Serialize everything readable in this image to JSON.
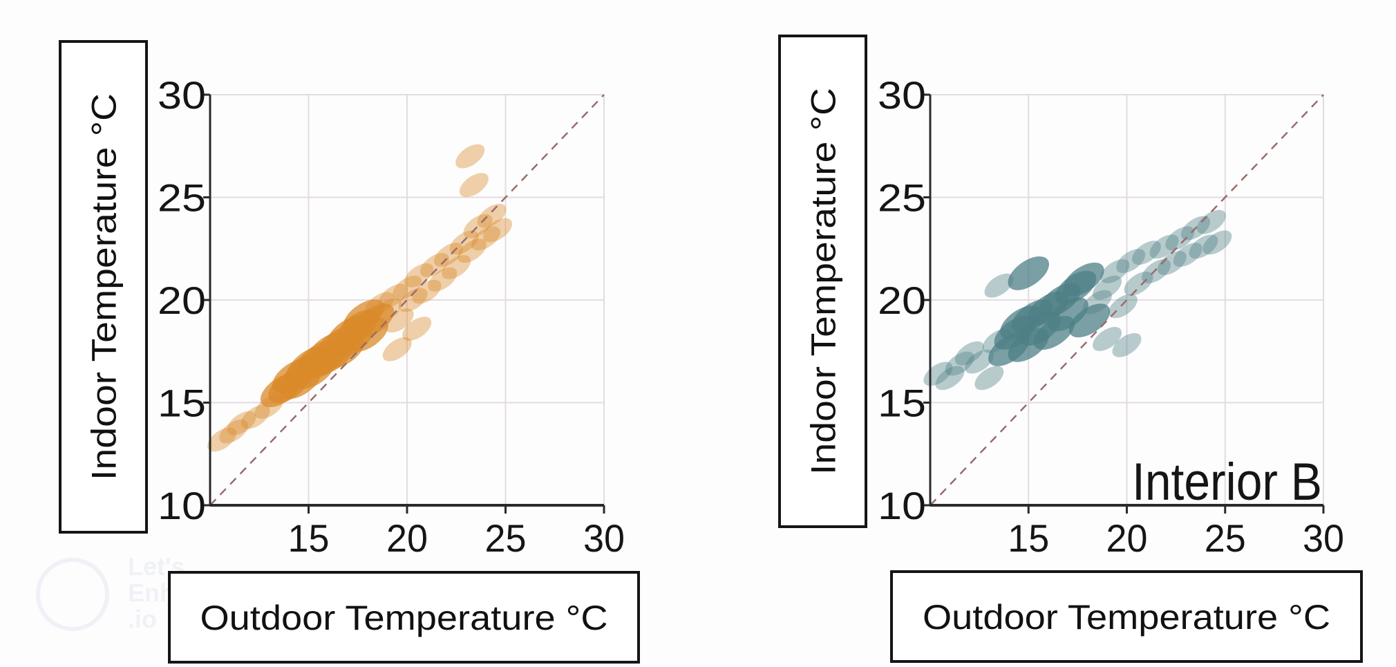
{
  "watermark": {
    "lines": [
      "Let's",
      "Enhance",
      ".io"
    ]
  },
  "chart_data": [
    {
      "type": "scatter",
      "title": "",
      "annotation": "",
      "xlabel": "Outdoor Temperature °C",
      "ylabel": "Indoor Temperature °C",
      "xlim": [
        10,
        30
      ],
      "ylim": [
        10,
        30
      ],
      "xticks": [
        "15",
        "20",
        "25",
        "30"
      ],
      "yticks": [
        "10",
        "15",
        "20",
        "25",
        "30"
      ],
      "grid": true,
      "reference_line": "y = x (dashed)",
      "color": "#d98a2a",
      "points": [
        [
          10.6,
          13.2
        ],
        [
          11.2,
          13.6
        ],
        [
          11.6,
          14.0
        ],
        [
          12.3,
          14.3
        ],
        [
          13.0,
          14.8
        ],
        [
          13.6,
          15.6
        ],
        [
          14.0,
          15.8
        ],
        [
          14.2,
          16.3
        ],
        [
          14.6,
          16.0
        ],
        [
          14.8,
          16.6
        ],
        [
          15.0,
          16.9
        ],
        [
          15.3,
          16.5
        ],
        [
          15.5,
          17.2
        ],
        [
          15.8,
          17.0
        ],
        [
          16.0,
          17.6
        ],
        [
          16.2,
          17.2
        ],
        [
          16.5,
          17.9
        ],
        [
          16.8,
          17.5
        ],
        [
          17.0,
          18.4
        ],
        [
          17.2,
          18.0
        ],
        [
          17.5,
          18.7
        ],
        [
          17.8,
          19.2
        ],
        [
          18.0,
          18.3
        ],
        [
          18.3,
          19.0
        ],
        [
          18.6,
          19.8
        ],
        [
          19.0,
          19.5
        ],
        [
          19.3,
          20.2
        ],
        [
          19.6,
          19.0
        ],
        [
          20.0,
          20.6
        ],
        [
          20.3,
          20.0
        ],
        [
          20.6,
          21.2
        ],
        [
          21.0,
          20.4
        ],
        [
          21.4,
          21.7
        ],
        [
          21.8,
          21.0
        ],
        [
          22.1,
          22.2
        ],
        [
          22.5,
          21.6
        ],
        [
          22.9,
          22.8
        ],
        [
          23.3,
          22.4
        ],
        [
          23.6,
          23.6
        ],
        [
          24.0,
          23.0
        ],
        [
          24.3,
          24.1
        ],
        [
          24.6,
          23.4
        ],
        [
          23.4,
          25.6
        ],
        [
          23.2,
          27.0
        ],
        [
          19.5,
          17.6
        ],
        [
          20.5,
          18.6
        ]
      ]
    },
    {
      "type": "scatter",
      "title": "",
      "annotation": "Interior B",
      "xlabel": "Outdoor Temperature °C",
      "ylabel": "Indoor Temperature °C",
      "xlim": [
        10,
        30
      ],
      "ylim": [
        10,
        30
      ],
      "xticks": [
        "15",
        "20",
        "25",
        "30"
      ],
      "yticks": [
        "10",
        "15",
        "20",
        "25",
        "30"
      ],
      "grid": true,
      "reference_line": "y = x (dashed)",
      "color": "#4e7f85",
      "points": [
        [
          10.4,
          16.4
        ],
        [
          11.0,
          16.2
        ],
        [
          11.5,
          16.9
        ],
        [
          12.0,
          17.4
        ],
        [
          12.5,
          17.0
        ],
        [
          13.0,
          16.2
        ],
        [
          13.4,
          18.0
        ],
        [
          14.0,
          17.6
        ],
        [
          14.3,
          18.4
        ],
        [
          14.6,
          18.9
        ],
        [
          15.0,
          17.8
        ],
        [
          15.2,
          19.2
        ],
        [
          15.6,
          18.6
        ],
        [
          16.0,
          19.6
        ],
        [
          16.3,
          18.4
        ],
        [
          16.6,
          20.0
        ],
        [
          17.0,
          19.3
        ],
        [
          17.4,
          20.6
        ],
        [
          17.8,
          21.0
        ],
        [
          18.1,
          19.0
        ],
        [
          18.5,
          19.9
        ],
        [
          19.0,
          20.6
        ],
        [
          19.4,
          21.4
        ],
        [
          19.8,
          19.7
        ],
        [
          20.2,
          21.9
        ],
        [
          20.6,
          20.8
        ],
        [
          21.0,
          22.3
        ],
        [
          21.5,
          21.4
        ],
        [
          21.9,
          22.6
        ],
        [
          22.3,
          21.8
        ],
        [
          22.7,
          23.0
        ],
        [
          23.1,
          22.2
        ],
        [
          23.5,
          23.5
        ],
        [
          23.9,
          22.6
        ],
        [
          24.3,
          23.8
        ],
        [
          24.6,
          22.8
        ],
        [
          15.0,
          21.3
        ],
        [
          13.5,
          20.7
        ],
        [
          19.0,
          18.1
        ],
        [
          20.0,
          17.8
        ]
      ]
    }
  ]
}
